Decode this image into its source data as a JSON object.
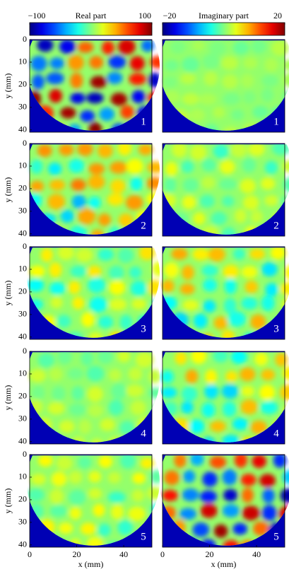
{
  "chart_data": [
    {
      "type": "colorbar",
      "title": "Real part",
      "lim": [
        -100,
        100
      ],
      "ticks": [
        {
          "value": -100,
          "label": "−100"
        },
        100
      ]
    },
    {
      "type": "colorbar",
      "title": "Imaginary part",
      "lim": [
        -20,
        20
      ],
      "ticks": [
        {
          "value": -20,
          "label": "−20"
        },
        20
      ]
    },
    {
      "type": "heatmap",
      "label": "1",
      "xlim": [
        0,
        52
      ],
      "ylim": [
        0,
        41
      ],
      "yticks": [
        0,
        10,
        20,
        30,
        40
      ],
      "ylabel": "y (mm)"
    },
    {
      "type": "heatmap",
      "label": "1",
      "xlim": [
        0,
        52
      ],
      "ylim": [
        0,
        41
      ]
    },
    {
      "type": "heatmap",
      "label": "2",
      "xlim": [
        0,
        52
      ],
      "ylim": [
        0,
        41
      ],
      "yticks": [
        0,
        10,
        20,
        30,
        40
      ],
      "ylabel": "y (mm)"
    },
    {
      "type": "heatmap",
      "label": "2",
      "xlim": [
        0,
        52
      ],
      "ylim": [
        0,
        41
      ]
    },
    {
      "type": "heatmap",
      "label": "3",
      "xlim": [
        0,
        52
      ],
      "ylim": [
        0,
        41
      ],
      "yticks": [
        0,
        10,
        20,
        30,
        40
      ],
      "ylabel": "y (mm)"
    },
    {
      "type": "heatmap",
      "label": "3",
      "xlim": [
        0,
        52
      ],
      "ylim": [
        0,
        41
      ]
    },
    {
      "type": "heatmap",
      "label": "4",
      "xlim": [
        0,
        52
      ],
      "ylim": [
        0,
        41
      ],
      "yticks": [
        0,
        10,
        20,
        30,
        40
      ],
      "ylabel": "y (mm)"
    },
    {
      "type": "heatmap",
      "label": "4",
      "xlim": [
        0,
        52
      ],
      "ylim": [
        0,
        41
      ]
    },
    {
      "type": "heatmap",
      "label": "5",
      "xlim": [
        0,
        52
      ],
      "ylim": [
        0,
        41
      ],
      "yticks": [
        0,
        10,
        20,
        30,
        40
      ],
      "ylabel": "y (mm)",
      "xticks": [
        0,
        20,
        40
      ],
      "xlabel": "x (mm)"
    },
    {
      "type": "heatmap",
      "label": "5",
      "xlim": [
        0,
        52
      ],
      "ylim": [
        0,
        41
      ],
      "xticks": [
        0,
        20,
        40
      ],
      "xlabel": "x (mm)"
    }
  ]
}
